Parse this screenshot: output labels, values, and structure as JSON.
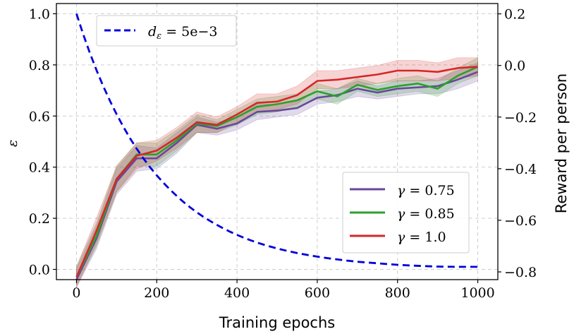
{
  "chart_data": {
    "type": "line",
    "xlabel": "Training epochs",
    "ylabel_left": "ε",
    "ylabel_right": "Reward per person",
    "xlim": [
      -50,
      1050
    ],
    "ylim_left": [
      -0.04,
      1.04
    ],
    "ylim_right": [
      -0.83,
      0.24
    ],
    "xticks": [
      0,
      200,
      400,
      600,
      800,
      1000
    ],
    "xtick_labels": [
      "0",
      "200",
      "400",
      "600",
      "800",
      "1000"
    ],
    "yticks_left": [
      0.0,
      0.2,
      0.4,
      0.6,
      0.8,
      1.0
    ],
    "ytick_labels_left": [
      "0.0",
      "0.2",
      "0.4",
      "0.6",
      "0.8",
      "1.0"
    ],
    "yticks_right": [
      -0.8,
      -0.6,
      -0.4,
      -0.2,
      0.0,
      0.2
    ],
    "ytick_labels_right": [
      "−0.8",
      "−0.6",
      "−0.4",
      "−0.2",
      "0.0",
      "0.2"
    ],
    "grid": true,
    "epsilon_legend": {
      "label": "d_ε = 5e−3",
      "label_main": "d",
      "label_sub": "ε",
      "label_rest": " = 5e−3",
      "placement": "top-left"
    },
    "reward_legend_placement": "lower-right",
    "epsilon_curve": {
      "name": "d_ε = 5e−3",
      "axis": "left",
      "color": "#0000dd",
      "style": "dashed",
      "x": [
        0,
        50,
        100,
        150,
        200,
        250,
        300,
        350,
        400,
        450,
        500,
        550,
        600,
        650,
        700,
        750,
        800,
        850,
        900,
        950,
        1000
      ],
      "values": [
        1.0,
        0.779,
        0.607,
        0.472,
        0.368,
        0.287,
        0.223,
        0.174,
        0.135,
        0.105,
        0.082,
        0.064,
        0.05,
        0.039,
        0.03,
        0.024,
        0.018,
        0.014,
        0.011,
        0.01,
        0.01
      ]
    },
    "x": [
      0,
      50,
      100,
      150,
      200,
      250,
      300,
      350,
      400,
      450,
      500,
      550,
      600,
      650,
      700,
      750,
      800,
      850,
      900,
      950,
      1000
    ],
    "series": [
      {
        "name": "γ = 0.75",
        "label_var": "γ",
        "label_val": " = 0.75",
        "axis": "right",
        "color": "#6a479b",
        "values": [
          -0.83,
          -0.67,
          -0.45,
          -0.36,
          -0.36,
          -0.3,
          -0.23,
          -0.245,
          -0.225,
          -0.18,
          -0.175,
          -0.165,
          -0.125,
          -0.115,
          -0.09,
          -0.105,
          -0.09,
          -0.085,
          -0.08,
          -0.055,
          -0.025
        ],
        "lower": [
          -0.86,
          -0.71,
          -0.5,
          -0.41,
          -0.4,
          -0.34,
          -0.26,
          -0.27,
          -0.25,
          -0.21,
          -0.2,
          -0.19,
          -0.15,
          -0.14,
          -0.12,
          -0.13,
          -0.12,
          -0.11,
          -0.11,
          -0.09,
          -0.06
        ],
        "upper": [
          -0.79,
          -0.62,
          -0.4,
          -0.31,
          -0.32,
          -0.26,
          -0.2,
          -0.22,
          -0.2,
          -0.15,
          -0.15,
          -0.14,
          -0.1,
          -0.09,
          -0.06,
          -0.08,
          -0.06,
          -0.06,
          -0.05,
          -0.02,
          0.01
        ]
      },
      {
        "name": "γ = 0.85",
        "label_var": "γ",
        "label_val": " = 0.85",
        "axis": "right",
        "color": "#2ca02c",
        "values": [
          -0.82,
          -0.66,
          -0.44,
          -0.345,
          -0.345,
          -0.29,
          -0.225,
          -0.235,
          -0.2,
          -0.16,
          -0.15,
          -0.135,
          -0.1,
          -0.12,
          -0.075,
          -0.095,
          -0.08,
          -0.07,
          -0.09,
          -0.04,
          -0.005
        ],
        "lower": [
          -0.85,
          -0.7,
          -0.49,
          -0.39,
          -0.39,
          -0.33,
          -0.26,
          -0.26,
          -0.23,
          -0.19,
          -0.18,
          -0.16,
          -0.13,
          -0.15,
          -0.1,
          -0.12,
          -0.11,
          -0.1,
          -0.12,
          -0.07,
          -0.04
        ],
        "upper": [
          -0.78,
          -0.61,
          -0.39,
          -0.3,
          -0.3,
          -0.25,
          -0.19,
          -0.21,
          -0.17,
          -0.13,
          -0.12,
          -0.11,
          -0.07,
          -0.09,
          -0.05,
          -0.07,
          -0.05,
          -0.04,
          -0.06,
          -0.01,
          0.03
        ]
      },
      {
        "name": "γ = 1.0",
        "label_var": "γ",
        "label_val": " = 1.0",
        "axis": "right",
        "color": "#d62728",
        "values": [
          -0.82,
          -0.64,
          -0.44,
          -0.35,
          -0.33,
          -0.28,
          -0.22,
          -0.23,
          -0.19,
          -0.145,
          -0.14,
          -0.115,
          -0.06,
          -0.055,
          -0.045,
          -0.035,
          -0.02,
          -0.02,
          -0.025,
          -0.01,
          -0.005
        ],
        "lower": [
          -0.86,
          -0.69,
          -0.49,
          -0.4,
          -0.37,
          -0.32,
          -0.26,
          -0.26,
          -0.22,
          -0.18,
          -0.17,
          -0.15,
          -0.09,
          -0.09,
          -0.08,
          -0.07,
          -0.06,
          -0.06,
          -0.06,
          -0.05,
          -0.04
        ],
        "upper": [
          -0.78,
          -0.59,
          -0.39,
          -0.3,
          -0.29,
          -0.24,
          -0.18,
          -0.2,
          -0.16,
          -0.11,
          -0.11,
          -0.08,
          -0.02,
          -0.02,
          -0.01,
          0.0,
          0.02,
          0.02,
          0.01,
          0.03,
          0.03
        ]
      }
    ]
  }
}
